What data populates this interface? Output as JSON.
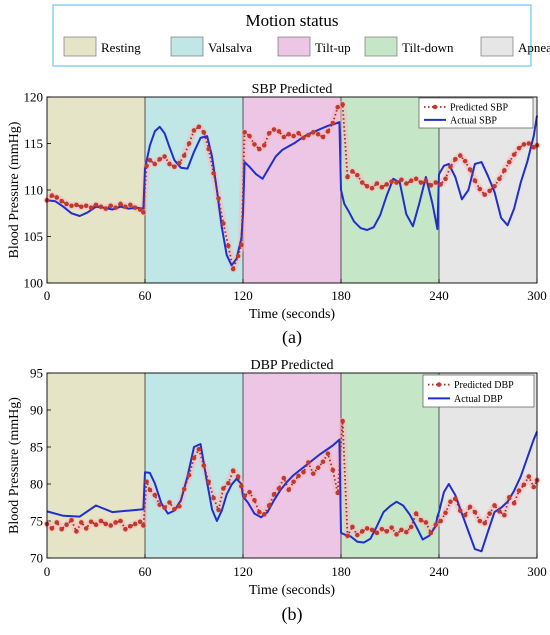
{
  "legend": {
    "title": "Motion status",
    "items": [
      {
        "label": "Resting",
        "color": "#e6e4c6"
      },
      {
        "label": "Valsalva",
        "color": "#c0e6e6"
      },
      {
        "label": "Tilt-up",
        "color": "#ecc6e4"
      },
      {
        "label": "Tilt-down",
        "color": "#c6e6c8"
      },
      {
        "label": "Apnea",
        "color": "#e6e6e6"
      }
    ]
  },
  "colors": {
    "predicted": "#a52a2a",
    "predicted_marker": "#c0392b",
    "marker_halo": "#f5b8c0",
    "actual": "#1f2fcc"
  },
  "chart_data": [
    {
      "type": "line",
      "title": "SBP Predicted",
      "xlabel": "Time (seconds)",
      "ylabel": "Blood Pressure (mmHg)",
      "panel_label": "(a)",
      "xlim": [
        0,
        300
      ],
      "ylim": [
        100,
        120
      ],
      "xticks": [
        "0",
        "60",
        "120",
        "180",
        "240",
        "300"
      ],
      "yticks": [
        "100",
        "105",
        "110",
        "115",
        "120"
      ],
      "legend_position": "top-right",
      "regions": [
        [
          0,
          60
        ],
        [
          60,
          120
        ],
        [
          120,
          180
        ],
        [
          180,
          240
        ],
        [
          240,
          300
        ]
      ],
      "series": [
        {
          "name": "Predicted SBP",
          "style": "dotted-marker",
          "x": [
            0,
            3,
            6,
            9,
            12,
            15,
            18,
            21,
            24,
            27,
            30,
            33,
            36,
            39,
            42,
            45,
            48,
            51,
            54,
            57,
            59,
            61,
            63,
            66,
            69,
            72,
            75,
            78,
            81,
            84,
            87,
            90,
            93,
            96,
            99,
            102,
            105,
            108,
            111,
            114,
            117,
            119,
            121,
            124,
            127,
            130,
            133,
            136,
            139,
            142,
            145,
            148,
            151,
            154,
            157,
            160,
            163,
            166,
            169,
            172,
            175,
            178,
            181,
            184,
            187,
            190,
            193,
            196,
            199,
            202,
            205,
            208,
            211,
            214,
            217,
            220,
            223,
            226,
            229,
            232,
            235,
            238,
            241,
            244,
            247,
            250,
            253,
            256,
            259,
            262,
            265,
            268,
            271,
            274,
            277,
            280,
            283,
            286,
            289,
            292,
            295,
            298,
            300
          ],
          "y": [
            108.9,
            109.4,
            109.2,
            108.8,
            108.5,
            108.3,
            108.4,
            108.2,
            108.3,
            108.1,
            108.4,
            108.2,
            108.0,
            108.3,
            108.1,
            108.5,
            108.2,
            108.4,
            108.1,
            107.9,
            107.6,
            112.6,
            113.2,
            112.8,
            113.3,
            113.6,
            112.8,
            112.5,
            112.9,
            113.7,
            115.0,
            116.4,
            116.8,
            116.2,
            114.4,
            111.8,
            109.1,
            106.4,
            104.0,
            101.5,
            102.9,
            104.1,
            116.2,
            115.8,
            114.9,
            114.4,
            114.8,
            116.1,
            116.5,
            116.3,
            115.7,
            116.0,
            115.8,
            116.1,
            115.6,
            115.9,
            116.2,
            116.0,
            115.7,
            116.3,
            117.2,
            118.9,
            119.2,
            111.4,
            112.0,
            111.6,
            110.8,
            110.4,
            110.2,
            110.7,
            110.3,
            110.6,
            110.9,
            110.8,
            111.1,
            110.7,
            111.0,
            111.2,
            110.8,
            111.0,
            110.5,
            110.8,
            110.6,
            111.2,
            112.5,
            113.3,
            113.7,
            113.1,
            112.2,
            111.0,
            110.1,
            109.5,
            109.9,
            110.4,
            111.2,
            112.1,
            113.0,
            113.8,
            114.5,
            114.9,
            115.0,
            114.6,
            114.8
          ]
        },
        {
          "name": "Actual SBP",
          "style": "solid",
          "x": [
            0,
            5,
            10,
            15,
            20,
            25,
            30,
            35,
            40,
            45,
            50,
            55,
            59,
            60,
            63,
            66,
            69,
            72,
            75,
            78,
            82,
            86,
            90,
            94,
            98,
            101,
            104,
            107,
            110,
            113,
            116,
            119,
            120,
            121,
            124,
            128,
            132,
            136,
            140,
            144,
            148,
            152,
            156,
            160,
            164,
            168,
            172,
            176,
            179,
            180,
            182,
            185,
            188,
            192,
            196,
            200,
            204,
            208,
            212,
            216,
            220,
            224,
            228,
            232,
            236,
            239,
            240,
            243,
            246,
            250,
            254,
            258,
            262,
            266,
            270,
            274,
            278,
            282,
            286,
            290,
            294,
            298,
            300
          ],
          "y": [
            108.9,
            108.8,
            108.2,
            107.5,
            107.2,
            107.6,
            108.2,
            108.1,
            107.9,
            108.2,
            108.0,
            108.1,
            108.0,
            112.3,
            114.8,
            116.3,
            116.8,
            116.1,
            114.6,
            113.2,
            112.4,
            112.3,
            114.1,
            115.6,
            115.8,
            113.6,
            110.0,
            106.0,
            103.0,
            101.9,
            102.6,
            104.8,
            107.5,
            113.0,
            112.5,
            111.7,
            111.2,
            112.4,
            113.6,
            114.3,
            114.7,
            115.1,
            115.6,
            116.0,
            116.3,
            116.6,
            116.9,
            117.1,
            117.3,
            110.0,
            108.5,
            107.6,
            106.6,
            105.9,
            105.7,
            106.0,
            107.3,
            109.4,
            111.2,
            110.8,
            107.4,
            106.1,
            108.6,
            111.4,
            108.5,
            105.8,
            111.7,
            112.6,
            112.8,
            111.4,
            109.0,
            110.0,
            112.8,
            113.0,
            111.5,
            109.8,
            107.0,
            106.2,
            108.0,
            110.8,
            113.0,
            115.8,
            118.0
          ]
        }
      ]
    },
    {
      "type": "line",
      "title": "DBP Predicted",
      "xlabel": "Time (seconds)",
      "ylabel": "Blood Pressure (mmHg)",
      "panel_label": "(b)",
      "xlim": [
        0,
        300
      ],
      "ylim": [
        70,
        95
      ],
      "xticks": [
        "0",
        "60",
        "120",
        "180",
        "240",
        "300"
      ],
      "yticks": [
        "70",
        "75",
        "80",
        "85",
        "90",
        "95"
      ],
      "legend_position": "top-right",
      "regions": [
        [
          0,
          60
        ],
        [
          60,
          120
        ],
        [
          120,
          180
        ],
        [
          180,
          240
        ],
        [
          240,
          300
        ]
      ],
      "series": [
        {
          "name": "Predicted DBP",
          "style": "dotted-marker",
          "x": [
            0,
            3,
            6,
            9,
            12,
            15,
            18,
            21,
            24,
            27,
            30,
            33,
            36,
            39,
            42,
            45,
            48,
            51,
            54,
            57,
            59,
            61,
            63,
            66,
            69,
            72,
            75,
            78,
            81,
            84,
            87,
            90,
            93,
            96,
            99,
            102,
            105,
            108,
            111,
            114,
            117,
            119,
            121,
            124,
            127,
            130,
            133,
            136,
            139,
            142,
            145,
            148,
            151,
            154,
            157,
            160,
            163,
            166,
            169,
            172,
            175,
            178,
            181,
            184,
            187,
            190,
            193,
            196,
            199,
            202,
            205,
            208,
            211,
            214,
            217,
            220,
            223,
            226,
            229,
            232,
            235,
            238,
            241,
            244,
            247,
            250,
            253,
            256,
            259,
            262,
            265,
            268,
            271,
            274,
            277,
            280,
            283,
            286,
            289,
            292,
            295,
            298,
            300
          ],
          "y": [
            74.6,
            74.0,
            74.8,
            73.9,
            74.5,
            75.1,
            73.6,
            74.8,
            74.0,
            74.9,
            74.5,
            75.0,
            74.6,
            74.4,
            74.8,
            75.0,
            73.9,
            74.3,
            74.6,
            74.9,
            74.4,
            80.3,
            79.2,
            78.5,
            77.2,
            76.8,
            77.5,
            76.6,
            77.0,
            79.3,
            81.2,
            83.5,
            84.7,
            82.5,
            80.3,
            78.1,
            76.5,
            79.4,
            80.1,
            81.8,
            81.0,
            79.7,
            78.4,
            78.9,
            77.8,
            76.2,
            75.9,
            77.1,
            78.6,
            79.4,
            80.8,
            79.2,
            80.3,
            81.1,
            81.6,
            82.9,
            81.4,
            82.2,
            83.0,
            84.1,
            81.9,
            78.8,
            88.5,
            73.0,
            74.2,
            73.1,
            73.6,
            74.0,
            73.8,
            73.4,
            73.9,
            73.6,
            74.1,
            73.2,
            73.8,
            73.5,
            74.2,
            76.0,
            75.1,
            74.8,
            73.4,
            74.5,
            75.0,
            76.1,
            77.6,
            78.0,
            76.4,
            75.8,
            76.9,
            76.2,
            75.0,
            74.7,
            76.0,
            77.1,
            76.3,
            75.8,
            78.2,
            77.4,
            79.1,
            79.9,
            81.0,
            79.6,
            80.5
          ]
        },
        {
          "name": "Actual DBP",
          "style": "solid",
          "x": [
            0,
            10,
            20,
            30,
            40,
            50,
            59,
            60,
            63,
            66,
            70,
            74,
            78,
            82,
            86,
            90,
            94,
            98,
            101,
            104,
            107,
            110,
            113,
            116,
            119,
            120,
            123,
            127,
            131,
            135,
            139,
            143,
            147,
            151,
            155,
            159,
            163,
            167,
            171,
            175,
            179,
            180,
            183,
            186,
            190,
            194,
            198,
            202,
            206,
            210,
            214,
            218,
            222,
            226,
            230,
            234,
            238,
            239,
            240,
            243,
            246,
            250,
            254,
            258,
            262,
            266,
            270,
            274,
            278,
            282,
            286,
            290,
            294,
            298,
            300
          ],
          "y": [
            76.3,
            75.7,
            75.6,
            77.1,
            76.2,
            76.4,
            76.6,
            81.6,
            81.5,
            80.1,
            77.4,
            76.0,
            76.4,
            77.8,
            81.0,
            85.0,
            85.4,
            80.2,
            76.6,
            75.0,
            76.4,
            78.6,
            79.9,
            80.7,
            80.0,
            78.3,
            77.5,
            76.0,
            75.5,
            76.2,
            77.8,
            79.2,
            80.3,
            81.2,
            81.9,
            82.6,
            83.3,
            84.0,
            84.6,
            85.2,
            86.0,
            73.4,
            73.1,
            72.9,
            72.2,
            72.1,
            72.6,
            74.3,
            76.2,
            77.0,
            77.6,
            77.1,
            75.9,
            74.3,
            72.5,
            73.0,
            74.3,
            75.6,
            76.2,
            78.9,
            80.0,
            78.5,
            76.0,
            73.6,
            71.2,
            70.9,
            73.6,
            76.2,
            76.8,
            77.6,
            79.1,
            81.0,
            83.5,
            86.0,
            87.1
          ]
        }
      ]
    }
  ]
}
